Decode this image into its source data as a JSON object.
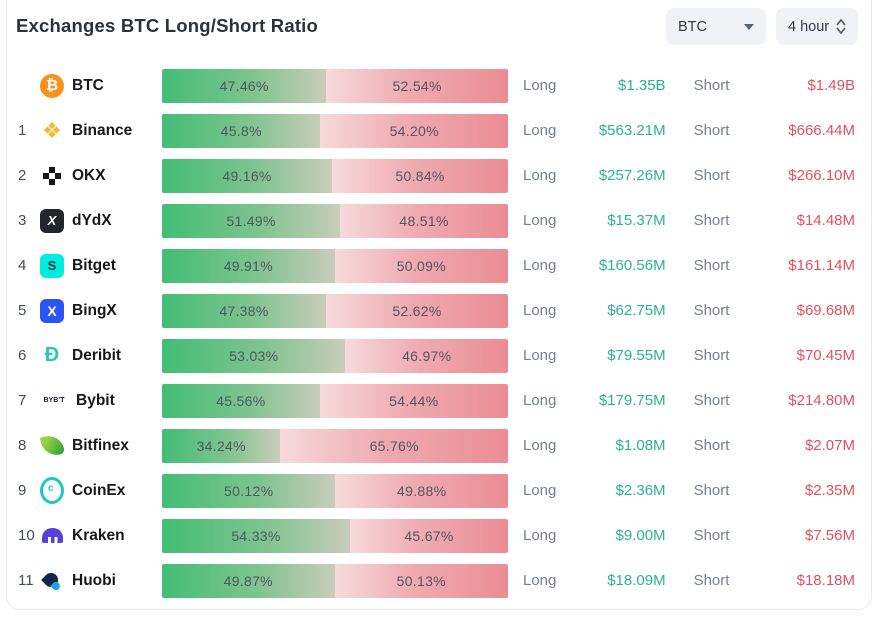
{
  "header": {
    "title": "Exchanges BTC Long/Short Ratio",
    "coin_selector": {
      "value": "BTC",
      "icon": "caret-down-icon"
    },
    "interval_selector": {
      "value": "4 hour",
      "icon": "chevron-up-down-icon"
    }
  },
  "labels": {
    "long": "Long",
    "short": "Short"
  },
  "colors": {
    "long_value_text": "#2eb190",
    "short_value_text": "#e0515f",
    "bar_long_gradient": [
      "#43bd76",
      "#c9ccba"
    ],
    "bar_short_gradient": [
      "#f6dadb",
      "#eb8c95"
    ],
    "btc_brand": "#f7931a",
    "select_background": "#f0f2f5"
  },
  "rows": [
    {
      "rank": "",
      "name": "BTC",
      "icon": "btc-icon",
      "long_pct": "47.46%",
      "short_pct": "52.54%",
      "long_value": "$1.35B",
      "short_value": "$1.49B"
    },
    {
      "rank": "1",
      "name": "Binance",
      "icon": "binance-icon",
      "long_pct": "45.8%",
      "short_pct": "54.20%",
      "long_value": "$563.21M",
      "short_value": "$666.44M"
    },
    {
      "rank": "2",
      "name": "OKX",
      "icon": "okx-icon",
      "long_pct": "49.16%",
      "short_pct": "50.84%",
      "long_value": "$257.26M",
      "short_value": "$266.10M"
    },
    {
      "rank": "3",
      "name": "dYdX",
      "icon": "dydx-icon",
      "long_pct": "51.49%",
      "short_pct": "48.51%",
      "long_value": "$15.37M",
      "short_value": "$14.48M"
    },
    {
      "rank": "4",
      "name": "Bitget",
      "icon": "bitget-icon",
      "long_pct": "49.91%",
      "short_pct": "50.09%",
      "long_value": "$160.56M",
      "short_value": "$161.14M"
    },
    {
      "rank": "5",
      "name": "BingX",
      "icon": "bingx-icon",
      "long_pct": "47.38%",
      "short_pct": "52.62%",
      "long_value": "$62.75M",
      "short_value": "$69.68M"
    },
    {
      "rank": "6",
      "name": "Deribit",
      "icon": "deribit-icon",
      "long_pct": "53.03%",
      "short_pct": "46.97%",
      "long_value": "$79.55M",
      "short_value": "$70.45M"
    },
    {
      "rank": "7",
      "name": "Bybit",
      "icon": "bybit-icon",
      "long_pct": "45.56%",
      "short_pct": "54.44%",
      "long_value": "$179.75M",
      "short_value": "$214.80M"
    },
    {
      "rank": "8",
      "name": "Bitfinex",
      "icon": "bitfinex-icon",
      "long_pct": "34.24%",
      "short_pct": "65.76%",
      "long_value": "$1.08M",
      "short_value": "$2.07M"
    },
    {
      "rank": "9",
      "name": "CoinEx",
      "icon": "coinex-icon",
      "long_pct": "50.12%",
      "short_pct": "49.88%",
      "long_value": "$2.36M",
      "short_value": "$2.35M"
    },
    {
      "rank": "10",
      "name": "Kraken",
      "icon": "kraken-icon",
      "long_pct": "54.33%",
      "short_pct": "45.67%",
      "long_value": "$9.00M",
      "short_value": "$7.56M"
    },
    {
      "rank": "11",
      "name": "Huobi",
      "icon": "huobi-icon",
      "long_pct": "49.87%",
      "short_pct": "50.13%",
      "long_value": "$18.09M",
      "short_value": "$18.18M"
    }
  ]
}
